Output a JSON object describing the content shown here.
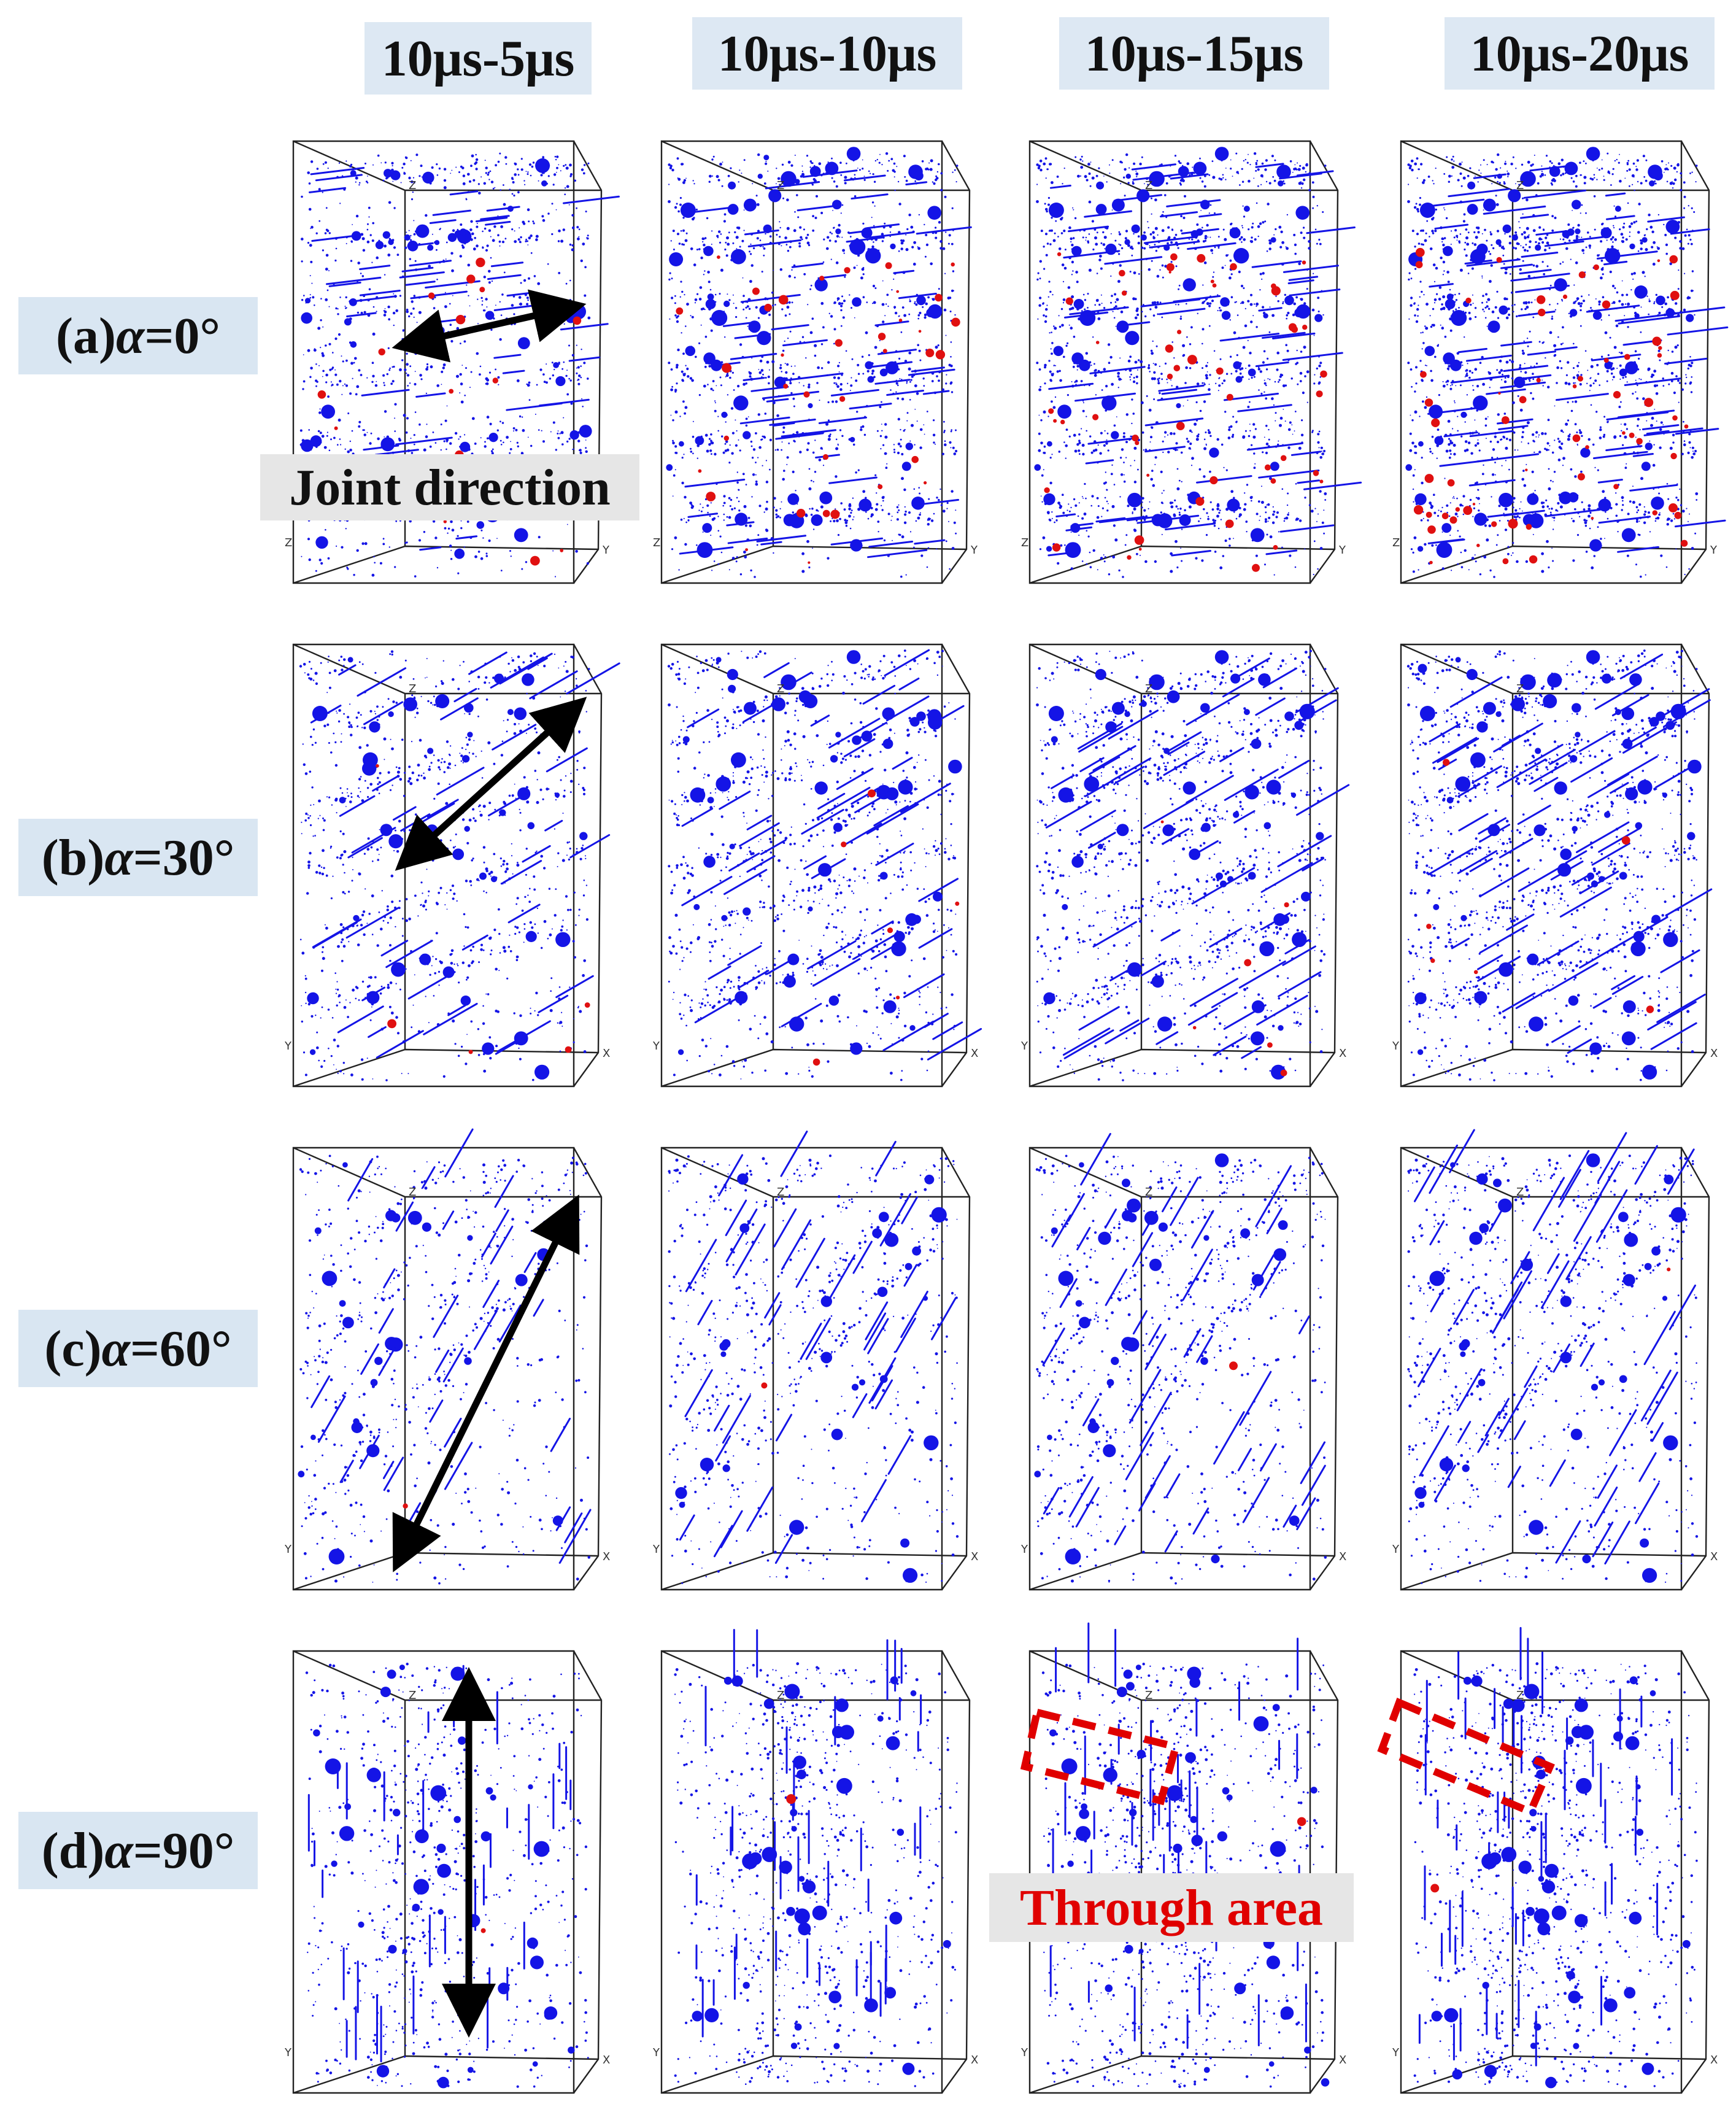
{
  "columns": [
    {
      "label": "10μs-5μs"
    },
    {
      "label": "10μs-10μs"
    },
    {
      "label": "10μs-15μs"
    },
    {
      "label": "10μs-20μs"
    }
  ],
  "rows": [
    {
      "prefix": "(a) ",
      "alpha": "α",
      "value": "=0°",
      "angle_deg": 0
    },
    {
      "prefix": "(b) ",
      "alpha": "α",
      "value": "=30°",
      "angle_deg": 30
    },
    {
      "prefix": "(c) ",
      "alpha": "α",
      "value": "=60°",
      "angle_deg": 60
    },
    {
      "prefix": "(d) ",
      "alpha": "α",
      "value": "=90°",
      "angle_deg": 90
    }
  ],
  "axis_labels": {
    "z": "Z",
    "x": "X",
    "y": "Y"
  },
  "annotations": {
    "joint_direction": "Joint direction",
    "through_area": "Through area"
  },
  "colors": {
    "crack_tensile": "#1414e6",
    "crack_shear": "#e01010",
    "header_bg": "#dde8f3",
    "annotation_red": "#e00000"
  }
}
